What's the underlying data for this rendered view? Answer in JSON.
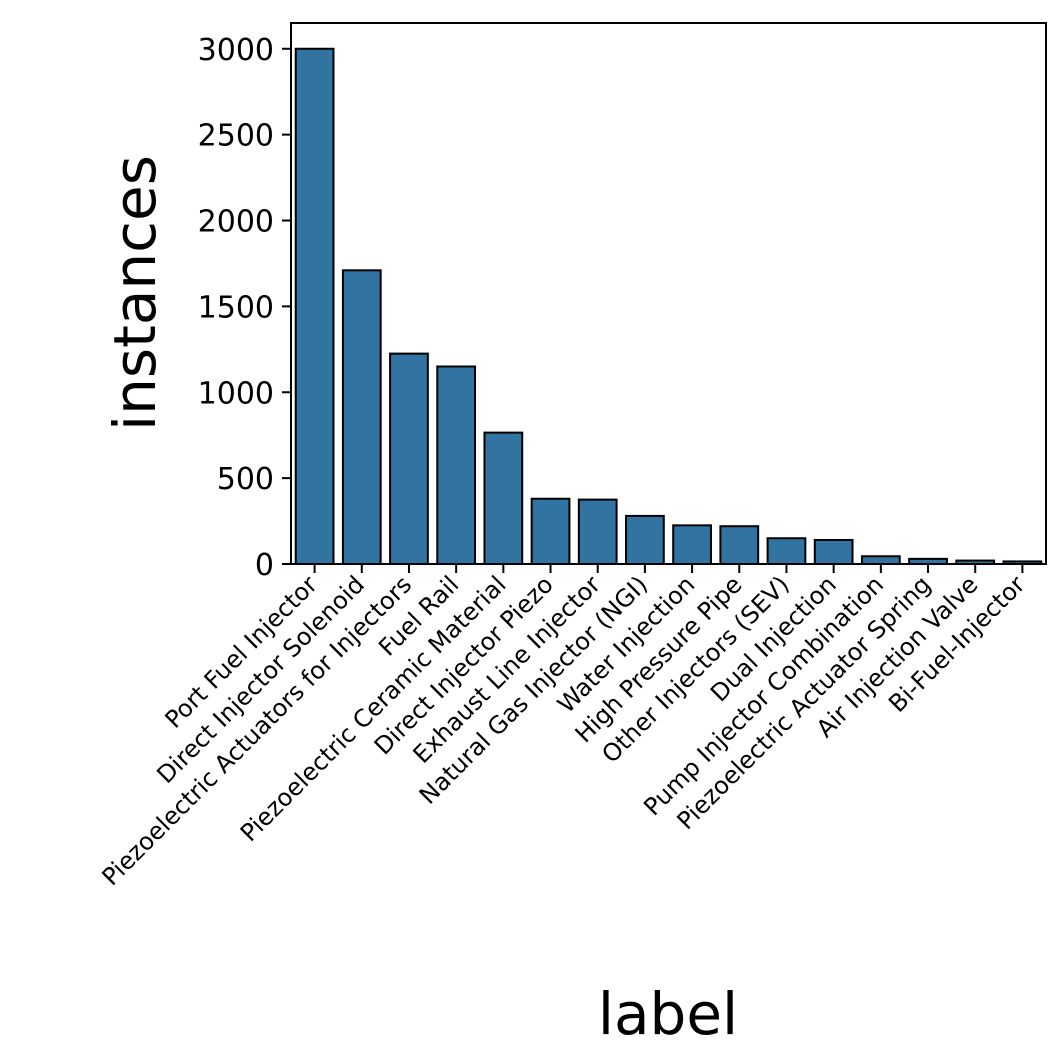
{
  "chart_data": {
    "type": "bar",
    "xlabel": "label",
    "ylabel": "instances",
    "ylim": [
      0,
      3150
    ],
    "yticks": [
      0,
      500,
      1000,
      1500,
      2000,
      2500,
      3000
    ],
    "grid": false,
    "categories": [
      "Port Fuel Injector",
      "Direct Injector Solenoid",
      "Piezoelectric Actuators for Injectors",
      "Fuel Rail",
      "Piezoelectric Ceramic Material",
      "Direct Injector Piezo",
      "Exhaust Line Injector",
      "Natural Gas Injector (NGI)",
      "Water Injection",
      "High Pressure Pipe",
      "Other Injectors (SEV)",
      "Dual Injection",
      "Pump Injector Combination",
      "Piezoelectric Actuator Spring",
      "Air Injection Valve",
      "Bi-Fuel-Injector"
    ],
    "values": [
      3000,
      1710,
      1225,
      1150,
      765,
      380,
      375,
      280,
      225,
      220,
      150,
      140,
      45,
      30,
      20,
      15
    ],
    "bar_color": "#3274a1",
    "edge_color": "#000000"
  }
}
